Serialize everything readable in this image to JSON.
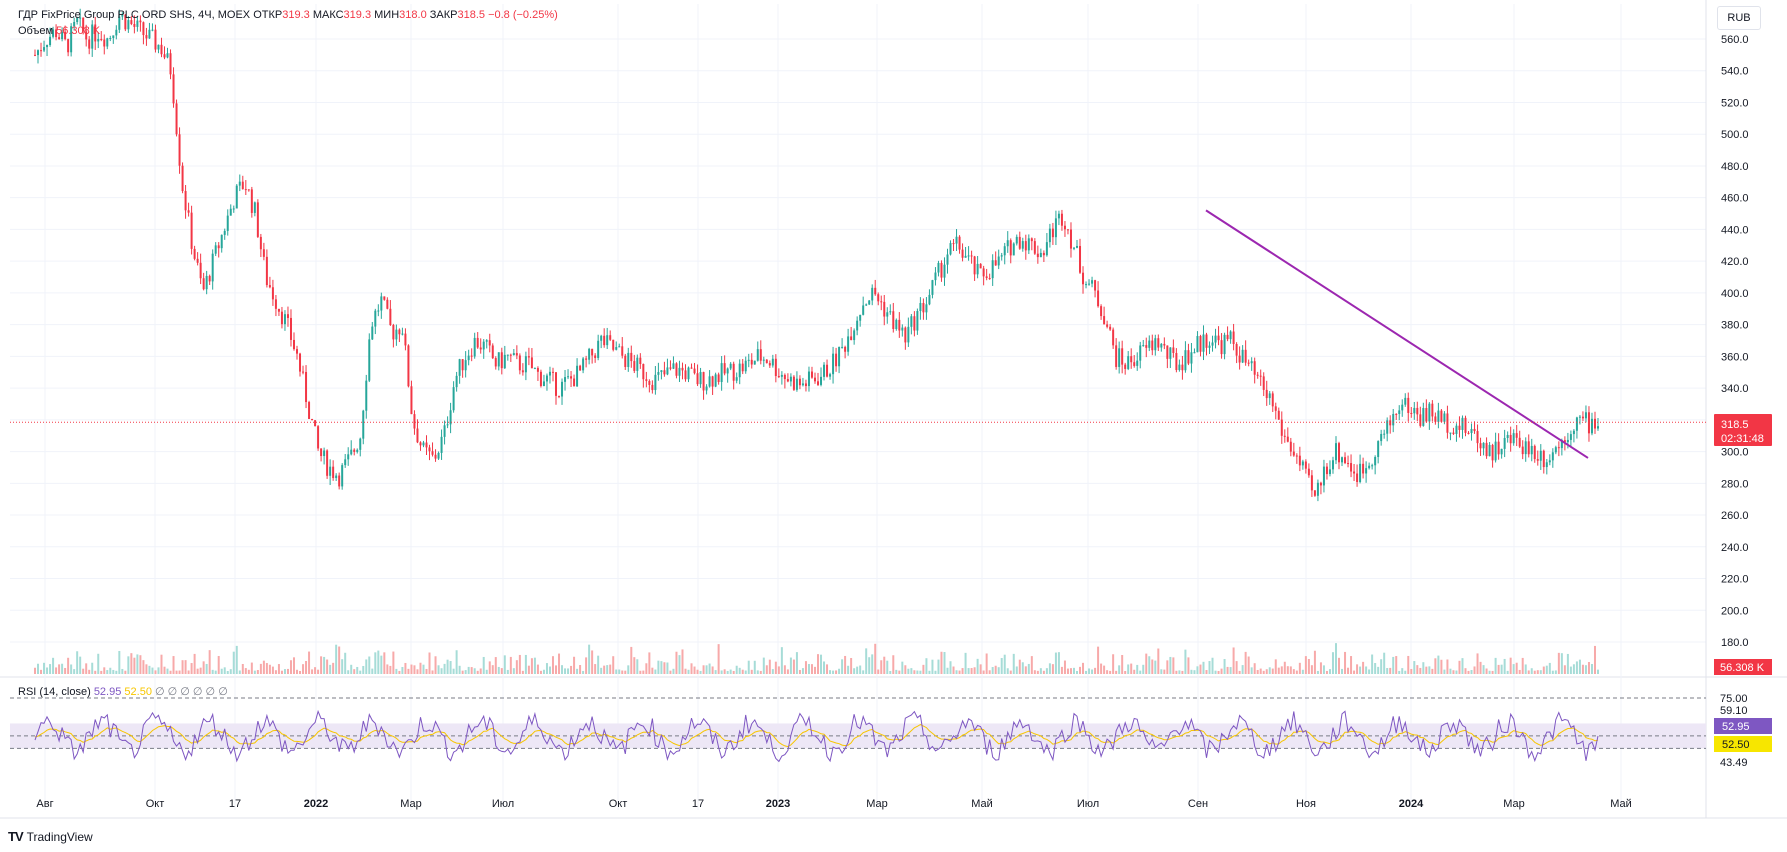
{
  "header": {
    "symbol": "ГДР FixPrice Group PLC ORD SHS, 4Ч, MOEX",
    "open_label": "ОТКР",
    "open_value": "319.3",
    "high_label": "МАКС",
    "high_value": "319.3",
    "low_label": "МИН",
    "low_value": "318.0",
    "close_label": "ЗАКР",
    "close_value": "318.5",
    "change": "−0.8 (−0.25%)",
    "volume_label": "Объем",
    "volume_value": "56.308 K"
  },
  "currency": "RUB",
  "price_badge": {
    "value": "318.5",
    "countdown": "02:31:48"
  },
  "volume_badge": "56.308 K",
  "rsi": {
    "label": "RSI (14, close)",
    "value": "52.95",
    "ma_value": "52.50",
    "extra": "∅ ∅ ∅ ∅ ∅ ∅",
    "badge_rsi": "52.95",
    "badge_ma": "52.50",
    "upper_level_label": "75.00",
    "mid_level_label": "59.10",
    "lower_level_label": "43.49"
  },
  "brand": "TradingView",
  "colors": {
    "up": "#26a69a",
    "down": "#f23645",
    "trendline": "#9c27b0",
    "rsi_line": "#7e57c2",
    "rsi_ma": "#f7c600",
    "rsi_band": "#ede7f6"
  },
  "chart_data": {
    "type": "candlestick",
    "price_axis_ticks": [
      180,
      200,
      220,
      240,
      260,
      280,
      300,
      320,
      340,
      360,
      380,
      400,
      420,
      440,
      460,
      480,
      500,
      520,
      540,
      560
    ],
    "price_axis_ticks_labels": [
      "180.0",
      "200.0",
      "220.0",
      "240.0",
      "260.0",
      "280.0",
      "300.0",
      "320.0",
      "340.0",
      "360.0",
      "380.0",
      "400.0",
      "420.0",
      "440.0",
      "460.0",
      "480.0",
      "500.0",
      "520.0",
      "540.0",
      "560.0"
    ],
    "x_ticks": [
      "Авг",
      "Окт",
      "17",
      "2022",
      "Мар",
      "Июл",
      "Окт",
      "17",
      "2023",
      "Мар",
      "Май",
      "Июл",
      "Сен",
      "Ноя",
      "2024",
      "Мар",
      "Май"
    ],
    "ylim": [
      165,
      570
    ],
    "trendline": {
      "from_price": 452,
      "to_price": 296,
      "from_time": "Сен 2023",
      "to_time": "Апр 2024"
    },
    "last_price": 318.5,
    "rsi_levels": [
      75.0,
      59.1,
      43.49
    ],
    "price_path": [
      [
        0,
        550
      ],
      [
        1,
        560
      ],
      [
        2,
        565
      ],
      [
        3,
        555
      ],
      [
        4,
        570
      ],
      [
        5,
        560
      ],
      [
        6,
        565
      ],
      [
        7,
        560
      ],
      [
        8,
        575
      ],
      [
        9,
        570
      ],
      [
        10,
        565
      ],
      [
        11,
        560
      ],
      [
        12,
        555
      ],
      [
        13,
        540
      ],
      [
        14,
        470
      ],
      [
        15,
        430
      ],
      [
        16,
        400
      ],
      [
        17,
        420
      ],
      [
        18,
        440
      ],
      [
        19,
        460
      ],
      [
        20,
        470
      ],
      [
        21,
        450
      ],
      [
        22,
        410
      ],
      [
        23,
        395
      ],
      [
        24,
        380
      ],
      [
        25,
        360
      ],
      [
        26,
        330
      ],
      [
        27,
        300
      ],
      [
        28,
        290
      ],
      [
        29,
        285
      ],
      [
        30,
        295
      ],
      [
        31,
        310
      ],
      [
        32,
        380
      ],
      [
        33,
        395
      ],
      [
        34,
        375
      ],
      [
        35,
        380
      ],
      [
        36,
        320
      ],
      [
        37,
        300
      ],
      [
        38,
        295
      ],
      [
        39,
        310
      ],
      [
        40,
        345
      ],
      [
        41,
        360
      ],
      [
        42,
        370
      ],
      [
        43,
        365
      ],
      [
        44,
        355
      ],
      [
        45,
        360
      ],
      [
        46,
        355
      ],
      [
        47,
        355
      ],
      [
        48,
        348
      ],
      [
        49,
        345
      ],
      [
        50,
        340
      ],
      [
        51,
        345
      ],
      [
        52,
        350
      ],
      [
        53,
        360
      ],
      [
        54,
        370
      ],
      [
        55,
        365
      ],
      [
        56,
        360
      ],
      [
        57,
        355
      ],
      [
        58,
        350
      ],
      [
        59,
        345
      ],
      [
        60,
        348
      ],
      [
        61,
        352
      ],
      [
        62,
        350
      ],
      [
        63,
        345
      ],
      [
        64,
        345
      ],
      [
        65,
        348
      ],
      [
        66,
        350
      ],
      [
        67,
        352
      ],
      [
        68,
        355
      ],
      [
        69,
        360
      ],
      [
        70,
        358
      ],
      [
        71,
        350
      ],
      [
        72,
        345
      ],
      [
        73,
        342
      ],
      [
        74,
        345
      ],
      [
        75,
        348
      ],
      [
        76,
        355
      ],
      [
        77,
        365
      ],
      [
        78,
        380
      ],
      [
        79,
        395
      ],
      [
        80,
        400
      ],
      [
        81,
        390
      ],
      [
        82,
        380
      ],
      [
        83,
        372
      ],
      [
        84,
        385
      ],
      [
        85,
        395
      ],
      [
        86,
        410
      ],
      [
        87,
        425
      ],
      [
        88,
        430
      ],
      [
        89,
        420
      ],
      [
        90,
        410
      ],
      [
        91,
        415
      ],
      [
        92,
        420
      ],
      [
        93,
        430
      ],
      [
        94,
        435
      ],
      [
        95,
        430
      ],
      [
        96,
        425
      ],
      [
        97,
        440
      ],
      [
        98,
        450
      ],
      [
        99,
        430
      ],
      [
        100,
        410
      ],
      [
        101,
        400
      ],
      [
        102,
        385
      ],
      [
        103,
        360
      ],
      [
        104,
        355
      ],
      [
        105,
        360
      ],
      [
        106,
        365
      ],
      [
        107,
        370
      ],
      [
        108,
        360
      ],
      [
        109,
        355
      ],
      [
        110,
        362
      ],
      [
        111,
        368
      ],
      [
        112,
        372
      ],
      [
        113,
        368
      ],
      [
        114,
        370
      ],
      [
        115,
        360
      ],
      [
        116,
        350
      ],
      [
        117,
        340
      ],
      [
        118,
        330
      ],
      [
        119,
        310
      ],
      [
        120,
        300
      ],
      [
        121,
        285
      ],
      [
        122,
        270
      ],
      [
        123,
        290
      ],
      [
        124,
        300
      ],
      [
        125,
        295
      ],
      [
        126,
        285
      ],
      [
        127,
        292
      ],
      [
        128,
        305
      ],
      [
        129,
        315
      ],
      [
        130,
        330
      ],
      [
        131,
        328
      ],
      [
        132,
        322
      ],
      [
        133,
        325
      ],
      [
        134,
        320
      ],
      [
        135,
        318
      ],
      [
        136,
        315
      ],
      [
        137,
        312
      ],
      [
        138,
        305
      ],
      [
        139,
        300
      ],
      [
        140,
        305
      ],
      [
        141,
        308
      ],
      [
        142,
        304
      ],
      [
        143,
        300
      ],
      [
        144,
        296
      ],
      [
        145,
        302
      ],
      [
        146,
        312
      ],
      [
        147,
        320
      ],
      [
        148,
        318
      ],
      [
        149,
        318.5
      ]
    ]
  }
}
